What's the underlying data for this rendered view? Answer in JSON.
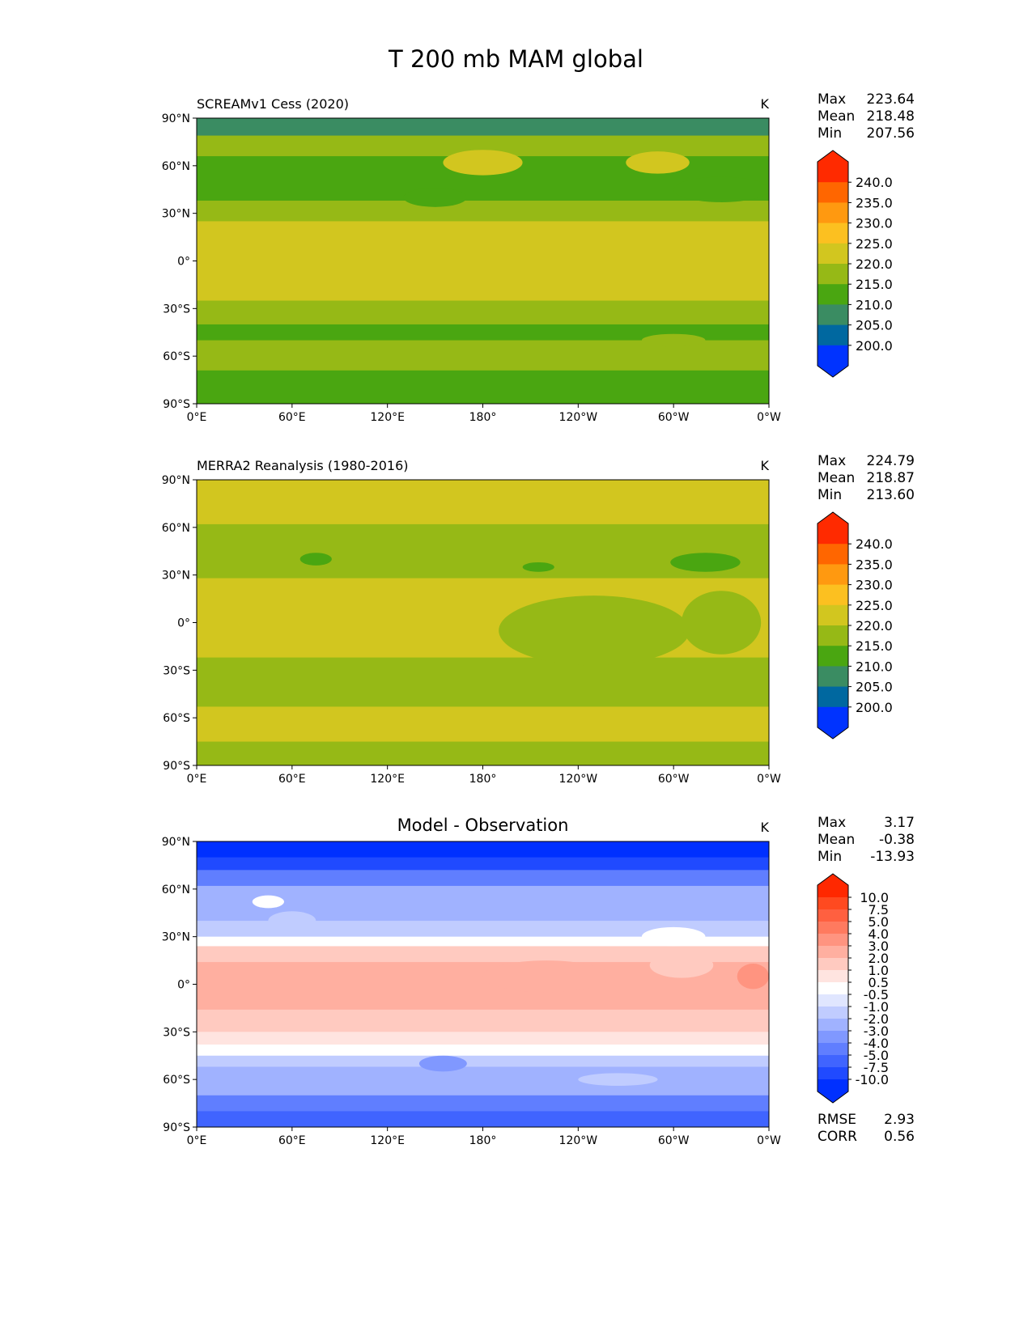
{
  "figure": {
    "title": "T 200 mb MAM global"
  },
  "axes": {
    "lat_ticks": [
      "90°N",
      "60°N",
      "30°N",
      "0°",
      "30°S",
      "60°S",
      "90°S"
    ],
    "lon_ticks": [
      "0°E",
      "60°E",
      "120°E",
      "180°",
      "120°W",
      "60°W",
      "0°W"
    ]
  },
  "chart_data": [
    {
      "type": "heatmap",
      "title": "SCREAMv1 Cess (2020)",
      "title_style": "left",
      "units": "K",
      "stats": {
        "max_label": "Max",
        "max": "223.64",
        "mean_label": "Mean",
        "mean": "218.48",
        "min_label": "Min",
        "min": "207.56"
      },
      "levels": [
        "200.0",
        "205.0",
        "210.0",
        "215.0",
        "220.0",
        "225.0",
        "230.0",
        "235.0",
        "240.0"
      ],
      "colors": [
        "#ff2a00",
        "#ff6600",
        "#ff9910",
        "#fcc020",
        "#d2c61f",
        "#96b916",
        "#4aa611",
        "#3a8c62",
        "#0068a0",
        "#0033ff"
      ],
      "color_thresholds": [
        240,
        235,
        230,
        225,
        220,
        215,
        210,
        205,
        200
      ],
      "zonal_bands": [
        [
          90,
          79,
          207.5
        ],
        [
          79,
          66,
          217.5
        ],
        [
          66,
          38,
          212.5
        ],
        [
          38,
          25,
          217.5
        ],
        [
          25,
          -25,
          222.5
        ],
        [
          -25,
          -40,
          217.5
        ],
        [
          -40,
          -50,
          212.5
        ],
        [
          -50,
          -69,
          217.5
        ],
        [
          -69,
          -90,
          212.5
        ]
      ],
      "blobs": [
        [
          180,
          62,
          25,
          8,
          222.5
        ],
        [
          290,
          62,
          20,
          7,
          222.5
        ],
        [
          150,
          40,
          20,
          6,
          212.5
        ],
        [
          330,
          45,
          30,
          8,
          212.5
        ],
        [
          300,
          -50,
          20,
          4,
          217.5
        ]
      ]
    },
    {
      "type": "heatmap",
      "title": "MERRA2 Reanalysis (1980-2016)",
      "title_style": "left",
      "units": "K",
      "stats": {
        "max_label": "Max",
        "max": "224.79",
        "mean_label": "Mean",
        "mean": "218.87",
        "min_label": "Min",
        "min": "213.60"
      },
      "levels": [
        "200.0",
        "205.0",
        "210.0",
        "215.0",
        "220.0",
        "225.0",
        "230.0",
        "235.0",
        "240.0"
      ],
      "colors": [
        "#ff2a00",
        "#ff6600",
        "#ff9910",
        "#fcc020",
        "#d2c61f",
        "#96b916",
        "#4aa611",
        "#3a8c62",
        "#0068a0",
        "#0033ff"
      ],
      "color_thresholds": [
        240,
        235,
        230,
        225,
        220,
        215,
        210,
        205,
        200
      ],
      "zonal_bands": [
        [
          90,
          62,
          222.5
        ],
        [
          62,
          28,
          217.5
        ],
        [
          28,
          -22,
          222.5
        ],
        [
          -22,
          -53,
          217.5
        ],
        [
          -53,
          -75,
          222.5
        ],
        [
          -75,
          -90,
          217.5
        ]
      ],
      "blobs": [
        [
          75,
          40,
          10,
          4,
          212.5
        ],
        [
          215,
          35,
          10,
          3,
          212.5
        ],
        [
          320,
          38,
          22,
          6,
          212.5
        ],
        [
          250,
          -5,
          60,
          22,
          217.5
        ],
        [
          330,
          0,
          25,
          20,
          217.5
        ]
      ]
    },
    {
      "type": "heatmap",
      "title": "Model - Observation",
      "title_style": "center",
      "units": "K",
      "stats": {
        "max_label": "Max",
        "max": "3.17",
        "mean_label": "Mean",
        "mean": "-0.38",
        "min_label": "Min",
        "min": "-13.93"
      },
      "levels": [
        "-10.0",
        "-7.5",
        "-5.0",
        "-4.0",
        "-3.0",
        "-2.0",
        "-1.0",
        "-0.5",
        "0.5",
        "1.0",
        "2.0",
        "3.0",
        "4.0",
        "5.0",
        "7.5",
        "10.0"
      ],
      "colors": [
        "#ff2800",
        "#ff4a20",
        "#ff6040",
        "#ff7a5f",
        "#ff9480",
        "#ffafa0",
        "#ffcac0",
        "#ffe4e0",
        "#ffffff",
        "#e0e6ff",
        "#c0ccff",
        "#a0b2ff",
        "#8098ff",
        "#607eff",
        "#4064ff",
        "#204aff",
        "#0030ff"
      ],
      "color_thresholds": [
        10,
        7.5,
        5,
        4,
        3,
        2,
        1,
        0.5,
        -0.5,
        -1,
        -2,
        -3,
        -4,
        -5,
        -7.5,
        -10
      ],
      "zonal_bands": [
        [
          90,
          80,
          -12
        ],
        [
          80,
          72,
          -8
        ],
        [
          72,
          62,
          -4.5
        ],
        [
          62,
          40,
          -2.5
        ],
        [
          40,
          30,
          -1.5
        ],
        [
          30,
          24,
          0
        ],
        [
          24,
          14,
          1.5
        ],
        [
          14,
          -16,
          2.5
        ],
        [
          -16,
          -30,
          1.5
        ],
        [
          -30,
          -38,
          0.7
        ],
        [
          -38,
          -45,
          0
        ],
        [
          -45,
          -52,
          -1.5
        ],
        [
          -52,
          -70,
          -2.5
        ],
        [
          -70,
          -80,
          -4.5
        ],
        [
          -80,
          -90,
          -6
        ]
      ],
      "blobs": [
        [
          45,
          52,
          10,
          4,
          0
        ],
        [
          300,
          30,
          20,
          6,
          0
        ],
        [
          305,
          12,
          20,
          8,
          1.5
        ],
        [
          350,
          5,
          10,
          8,
          3.5
        ],
        [
          220,
          5,
          40,
          10,
          2.5
        ],
        [
          155,
          -50,
          15,
          5,
          -3.5
        ],
        [
          265,
          -60,
          25,
          4,
          -1.5
        ],
        [
          60,
          40,
          15,
          6,
          -1.5
        ]
      ]
    }
  ],
  "footer_stats": {
    "rmse_label": "RMSE",
    "rmse": "2.93",
    "corr_label": "CORR",
    "corr": "0.56"
  }
}
